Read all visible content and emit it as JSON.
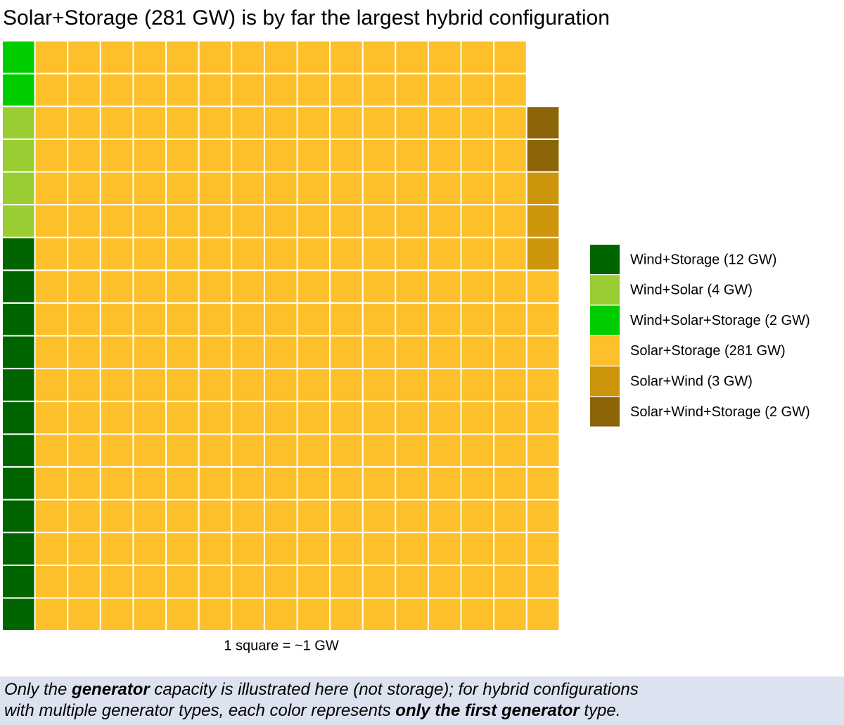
{
  "chart_data": {
    "type": "waffle",
    "title": "Solar+Storage (281 GW) is by far the largest hybrid configuration",
    "x_label": "1 square = ~1 GW",
    "series": [
      {
        "name": "Wind+Storage (12 GW)",
        "color": "#006400",
        "values": [
          12
        ]
      },
      {
        "name": "Wind+Solar (4 GW)",
        "color": "#9acd32",
        "values": [
          4
        ]
      },
      {
        "name": "Wind+Solar+Storage (2 GW)",
        "color": "#00cd00",
        "values": [
          2
        ]
      },
      {
        "name": "Solar+Storage (281 GW)",
        "color": "#fdbf2a",
        "values": [
          281
        ]
      },
      {
        "name": "Solar+Wind (3 GW)",
        "color": "#cd950c",
        "values": [
          3
        ]
      },
      {
        "name": "Solar+Wind+Storage (2 GW)",
        "color": "#8b6508",
        "values": [
          2
        ]
      }
    ],
    "legend": "right"
  },
  "caption": {
    "lines": [
      [
        {
          "text": "Only the ",
          "bold": false
        },
        {
          "text": "generator",
          "bold": true
        },
        {
          "text": " capacity is illustrated here (not storage); for hybrid configurations",
          "bold": false
        }
      ],
      [
        {
          "text": "with multiple generator types, each color represents ",
          "bold": false
        },
        {
          "text": "only the first generator",
          "bold": true
        },
        {
          "text": " type.",
          "bold": false
        }
      ]
    ]
  }
}
